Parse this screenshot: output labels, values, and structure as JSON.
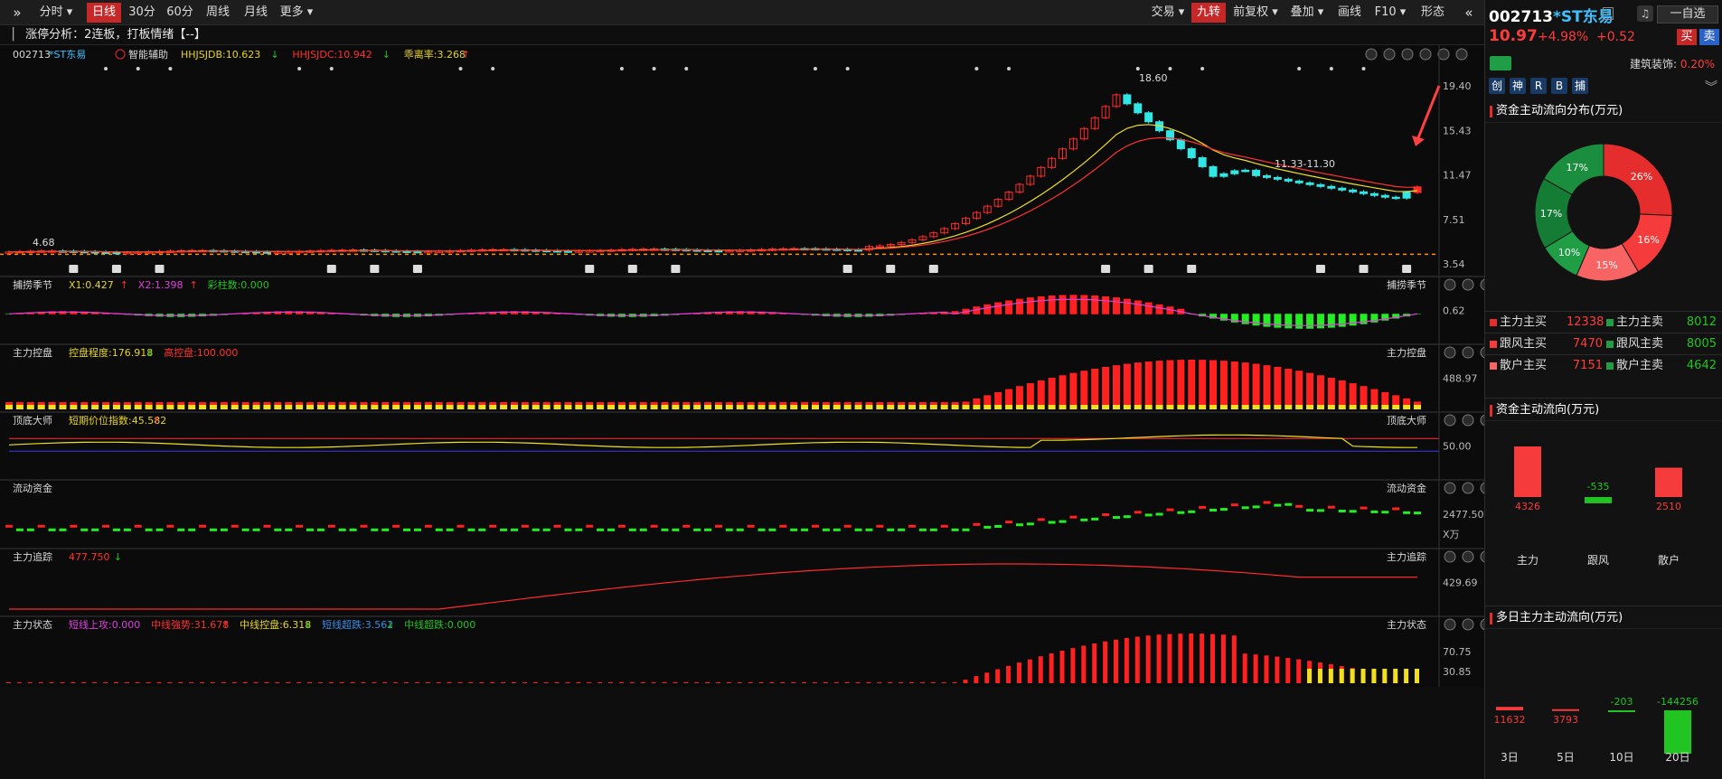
{
  "toolbar": {
    "collapse_icon": "double-chevron-right-icon",
    "buttons": [
      "分时",
      "日线",
      "30分",
      "60分",
      "周线",
      "月线",
      "更多"
    ],
    "right_buttons": [
      "交易",
      "九转",
      "前复权",
      "叠加",
      "画线",
      "F10",
      "形态"
    ],
    "right_collapse_icon": "double-chevron-left-icon"
  },
  "info_bar": {
    "text": "涨停分析：2连板，打板情绪【--】"
  },
  "main_chart": {
    "code": "002713",
    "name": "*ST东易",
    "tool": "智能辅助",
    "indicators": [
      {
        "label": "HHJSJDB:10.623",
        "color": "#e6d420",
        "arrow": "↓",
        "arrow_color": "#22c422"
      },
      {
        "label": "HHJSJDC:10.942",
        "color": "#ff3030",
        "arrow": "↓",
        "arrow_color": "#22c422"
      },
      {
        "label": "乖离率:3.268",
        "color": "#e6d420",
        "arrow": "↑",
        "arrow_color": "#ff3030"
      }
    ],
    "price_labels": [
      "19.40",
      "15.43",
      "11.47",
      "7.51",
      "3.54"
    ],
    "annotations": {
      "high": "18.60",
      "range": "11.33-11.30",
      "low": "4.68"
    }
  },
  "panels": [
    {
      "title": "捕捞季节",
      "axis": [
        "0.62"
      ],
      "indicators": [
        {
          "label": "X1:0.427",
          "color": "#e6d420",
          "arrow": "↑",
          "arrow_color": "#ff3030"
        },
        {
          "label": "X2:1.398",
          "color": "#e040e0",
          "arrow": "↑",
          "arrow_color": "#ff3030"
        },
        {
          "label": "彩柱数:0.000",
          "color": "#22c422",
          "arrow": "",
          "arrow_color": ""
        }
      ]
    },
    {
      "title": "主力控盘",
      "axis": [
        "488.97"
      ],
      "indicators": [
        {
          "label": "控盘程度:176.918",
          "color": "#e6d420",
          "arrow": "↓",
          "arrow_color": "#22c422"
        },
        {
          "label": "高控盘:100.000",
          "color": "#ff3030",
          "arrow": "",
          "arrow_color": ""
        }
      ]
    },
    {
      "title": "顶底大师",
      "axis": [
        "50.00"
      ],
      "indicators": [
        {
          "label": "短期价位指数:45.582",
          "color": "#e6d420",
          "arrow": "↑",
          "arrow_color": "#ff3030"
        }
      ]
    },
    {
      "title": "流动资金",
      "axis": [
        "2477.50",
        "X万"
      ],
      "indicators": []
    },
    {
      "title": "主力追踪",
      "axis": [
        "429.69"
      ],
      "indicators": [
        {
          "label": "477.750",
          "color": "#ff3030",
          "arrow": "↓",
          "arrow_color": "#22c422"
        }
      ]
    },
    {
      "title": "主力状态",
      "axis": [
        "70.75",
        "30.85"
      ],
      "indicators": [
        {
          "label": "短线上攻:0.000",
          "color": "#e040e0",
          "arrow": "",
          "arrow_color": ""
        },
        {
          "label": "中线強势:31.678",
          "color": "#ff3030",
          "arrow": "↑",
          "arrow_color": "#ff3030"
        },
        {
          "label": "中线控盘:6.318",
          "color": "#e6d420",
          "arrow": "↓",
          "arrow_color": "#22c422"
        },
        {
          "label": "短线超跌:3.562",
          "color": "#3a8ee6",
          "arrow": "↓",
          "arrow_color": "#22c422"
        },
        {
          "label": "中线超跌:0.000",
          "color": "#22c422",
          "arrow": "",
          "arrow_color": ""
        }
      ]
    }
  ],
  "right_panel": {
    "code": "002713",
    "name": "*ST东易",
    "price": "10.97",
    "change_pct": "+4.98%",
    "change": "+0.52",
    "buy": "买",
    "sell": "卖",
    "watch": "一自选",
    "industry": "建筑装饰:",
    "industry_pct": "0.20%",
    "tags": [
      "创",
      "神",
      "R",
      "B",
      "捕"
    ],
    "flow_dist_title": "资金主动流向分布(万元)",
    "pie": [
      {
        "label": "26%",
        "value": 26,
        "color": "#e52d2d"
      },
      {
        "label": "16%",
        "value": 16,
        "color": "#f53b3b"
      },
      {
        "label": "15%",
        "value": 15,
        "color": "#f86464"
      },
      {
        "label": "10%",
        "value": 10,
        "color": "#1f9e45"
      },
      {
        "label": "17%",
        "value": 17,
        "color": "#157c36"
      },
      {
        "label": "17%",
        "value": 17,
        "color": "#1b8d3e"
      }
    ],
    "flow_table": [
      {
        "l1": "主力主买",
        "v1": "12338",
        "l2": "主力主卖",
        "v2": "8012"
      },
      {
        "l1": "跟风主买",
        "v1": "7470",
        "l2": "跟风主卖",
        "v2": "8005"
      },
      {
        "l1": "散户主买",
        "v1": "7151",
        "l2": "散户主卖",
        "v2": "4642"
      }
    ],
    "flow_dir_title": "资金主动流向(万元)",
    "flow_dir": [
      {
        "label": "主力",
        "value": 4326
      },
      {
        "label": "跟风",
        "value": -535
      },
      {
        "label": "散户",
        "value": 2510
      }
    ],
    "multi_title": "多日主力主动流向(万元)",
    "multi": [
      {
        "label": "3日",
        "value": 11632
      },
      {
        "label": "5日",
        "value": 3793
      },
      {
        "label": "10日",
        "value": -203
      },
      {
        "label": "20日",
        "value": -144256
      }
    ]
  }
}
